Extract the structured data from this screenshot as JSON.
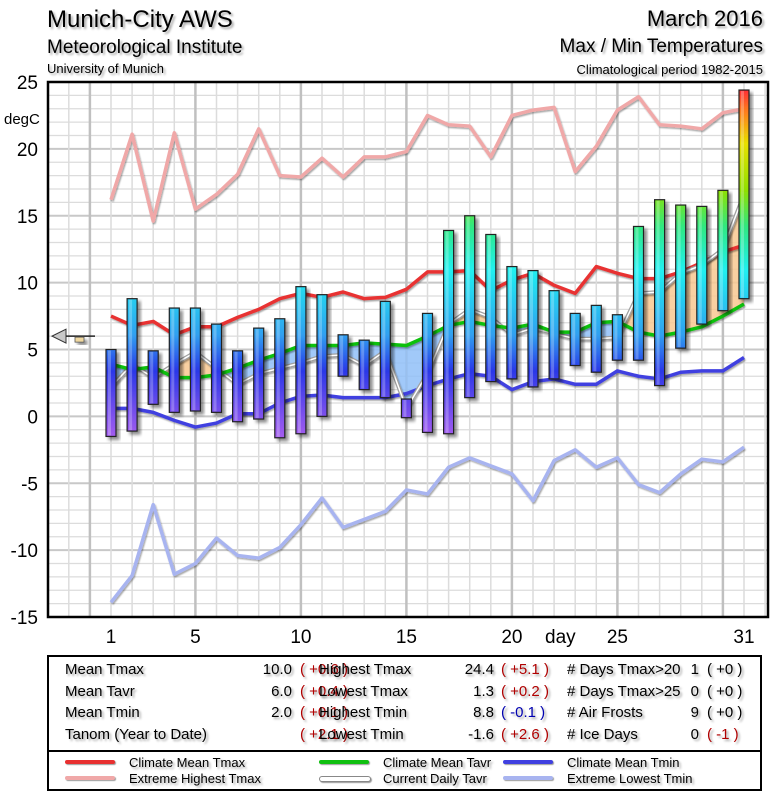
{
  "header": {
    "station": "Munich-City AWS",
    "institute": "Meteorological Institute",
    "university": "University of Munich",
    "month": "March 2016",
    "subtitle": "Max / Min Temperatures",
    "period": "Climatological period 1982-2015"
  },
  "colors": {
    "climate_mean_tmax": "#e83030",
    "extreme_highest_tmax": "#f0a8a8",
    "climate_mean_tavr": "#10c010",
    "current_daily_tavr": "#a0a0a0",
    "climate_mean_tmin": "#4040e0",
    "extreme_lowest_tmin": "#a8b4f0",
    "anomaly_positive": "#b00000",
    "anomaly_negative": "#0000b0"
  },
  "chart_data": {
    "type": "bar",
    "title": "Max / Min Temperatures",
    "xlabel": "day",
    "ylabel": "degC",
    "ylim": [
      -15,
      25
    ],
    "xlim": [
      -2,
      32
    ],
    "yticks": [
      "25",
      "20",
      "15",
      "10",
      "5",
      "0",
      "-5",
      "-10",
      "-15"
    ],
    "xticks": [
      "1",
      "5",
      "10",
      "15",
      "20",
      "25",
      "31"
    ],
    "grid": true,
    "x": [
      1,
      2,
      3,
      4,
      5,
      6,
      7,
      8,
      9,
      10,
      11,
      12,
      13,
      14,
      15,
      16,
      17,
      18,
      19,
      20,
      21,
      22,
      23,
      24,
      25,
      26,
      27,
      28,
      29,
      30,
      31
    ],
    "daily_tmax": [
      5.0,
      8.8,
      4.9,
      8.1,
      8.1,
      6.9,
      4.9,
      6.6,
      7.3,
      9.7,
      9.1,
      6.1,
      5.7,
      8.6,
      1.3,
      7.7,
      13.9,
      15.0,
      13.6,
      11.2,
      10.9,
      9.4,
      7.7,
      8.3,
      7.6,
      14.2,
      16.2,
      15.8,
      15.7,
      16.9,
      24.4
    ],
    "daily_tmin": [
      -1.5,
      -1.1,
      0.9,
      0.3,
      0.4,
      0.3,
      -0.4,
      -0.2,
      -1.6,
      -1.3,
      0.0,
      3.0,
      2.0,
      1.4,
      -0.1,
      -1.2,
      -1.3,
      1.4,
      2.6,
      2.8,
      2.2,
      2.8,
      3.8,
      3.3,
      4.2,
      4.2,
      2.3,
      5.1,
      6.9,
      7.9,
      8.8
    ],
    "series": [
      {
        "name": "Climate Mean Tmax",
        "values": [
          7.5,
          6.8,
          7.1,
          6.1,
          6.7,
          6.7,
          7.4,
          8.0,
          8.8,
          9.2,
          8.9,
          9.3,
          8.8,
          8.9,
          9.5,
          10.8,
          10.8,
          10.9,
          9.4,
          10.2,
          10.7,
          9.8,
          9.2,
          11.2,
          10.7,
          10.3,
          10.3,
          10.8,
          11.5,
          12.3,
          12.8
        ]
      },
      {
        "name": "Extreme Highest Tmax",
        "values": [
          16.2,
          21.1,
          14.6,
          21.2,
          15.5,
          16.6,
          18.1,
          21.5,
          18.0,
          17.9,
          19.3,
          17.9,
          19.4,
          19.4,
          19.8,
          22.5,
          21.8,
          21.7,
          19.4,
          22.5,
          22.9,
          23.1,
          18.3,
          20.2,
          22.9,
          23.9,
          21.8,
          21.7,
          21.5,
          22.7,
          23.0
        ]
      },
      {
        "name": "Climate Mean Tavr",
        "values": [
          3.9,
          3.5,
          3.7,
          2.9,
          2.9,
          3.1,
          3.6,
          4.2,
          4.7,
          5.3,
          5.3,
          5.3,
          5.5,
          5.4,
          5.3,
          6.0,
          6.8,
          7.1,
          6.8,
          6.6,
          6.9,
          6.3,
          6.3,
          7.0,
          7.1,
          6.3,
          6.0,
          6.3,
          6.7,
          7.5,
          8.4
        ]
      },
      {
        "name": "Current Daily Tavr",
        "values": [
          2.2,
          3.9,
          2.9,
          3.9,
          4.8,
          3.6,
          2.4,
          3.2,
          3.6,
          4.0,
          4.5,
          4.6,
          3.8,
          4.9,
          0.6,
          3.2,
          6.9,
          8.0,
          7.4,
          6.1,
          6.6,
          6.2,
          5.8,
          5.8,
          5.9,
          9.2,
          9.3,
          10.7,
          11.3,
          12.5,
          16.6
        ]
      },
      {
        "name": "Climate Mean Tmin",
        "values": [
          0.6,
          0.6,
          0.3,
          -0.3,
          -0.8,
          -0.5,
          0.2,
          0.2,
          1.0,
          1.5,
          1.6,
          1.4,
          1.4,
          1.4,
          1.7,
          2.3,
          2.8,
          3.2,
          3.0,
          2.0,
          2.6,
          2.8,
          2.4,
          2.4,
          3.4,
          3.0,
          2.8,
          3.3,
          3.4,
          3.4,
          4.4
        ]
      },
      {
        "name": "Extreme Lowest Tmin",
        "values": [
          -13.9,
          -11.9,
          -6.6,
          -11.8,
          -11.0,
          -9.1,
          -10.4,
          -10.6,
          -9.8,
          -8.1,
          -6.1,
          -8.3,
          -7.7,
          -7.1,
          -5.5,
          -5.8,
          -3.8,
          -3.1,
          -3.7,
          -4.3,
          -6.3,
          -3.3,
          -2.5,
          -3.8,
          -3.1,
          -5.1,
          -5.7,
          -4.3,
          -3.2,
          -3.4,
          -2.3
        ]
      }
    ],
    "legend_position": "bottom",
    "marker": {
      "name": "Tanom marker",
      "value": 6.0
    }
  },
  "stats": {
    "col1": [
      {
        "label": "Mean Tmax",
        "value": "10.0",
        "anom": "( +0.6 )",
        "sign": "pos"
      },
      {
        "label": "Mean Tavr",
        "value": "6.0",
        "anom": "( +0.4 )",
        "sign": "pos"
      },
      {
        "label": "Mean Tmin",
        "value": "2.0",
        "anom": "( +0.1 )",
        "sign": "pos"
      },
      {
        "label": "Tanom (Year to Date)",
        "value": "",
        "anom": "( +2.1 )",
        "sign": "pos"
      }
    ],
    "col2": [
      {
        "label": "Highest Tmax",
        "value": "24.4",
        "anom": "( +5.1 )",
        "sign": "pos"
      },
      {
        "label": "Lowest Tmax",
        "value": "1.3",
        "anom": "( +0.2 )",
        "sign": "pos"
      },
      {
        "label": "Highest Tmin",
        "value": "8.8",
        "anom": "( -0.1 )",
        "sign": "neg"
      },
      {
        "label": "Lowest Tmin",
        "value": "-1.6",
        "anom": "( +2.6 )",
        "sign": "pos"
      }
    ],
    "col3": [
      {
        "label": "# Days Tmax>20",
        "value": "1",
        "anom": "( +0 )",
        "sign": "none"
      },
      {
        "label": "# Days Tmax>25",
        "value": "0",
        "anom": "( +0 )",
        "sign": "none"
      },
      {
        "label": "# Air Frosts",
        "value": "9",
        "anom": "( +0 )",
        "sign": "none"
      },
      {
        "label": "# Ice Days",
        "value": "0",
        "anom": "( -1 )",
        "sign": "pos"
      }
    ]
  },
  "legend": [
    {
      "label": "Climate Mean Tmax",
      "color": "#e83030"
    },
    {
      "label": "Extreme Highest Tmax",
      "color": "#f0a8a8"
    },
    {
      "label": "Climate Mean Tavr",
      "color": "#10c010"
    },
    {
      "label": "Current Daily Tavr",
      "color": "#ffffff"
    },
    {
      "label": "Climate Mean Tmin",
      "color": "#4040e0"
    },
    {
      "label": "Extreme Lowest Tmin",
      "color": "#a8b4f0"
    }
  ]
}
